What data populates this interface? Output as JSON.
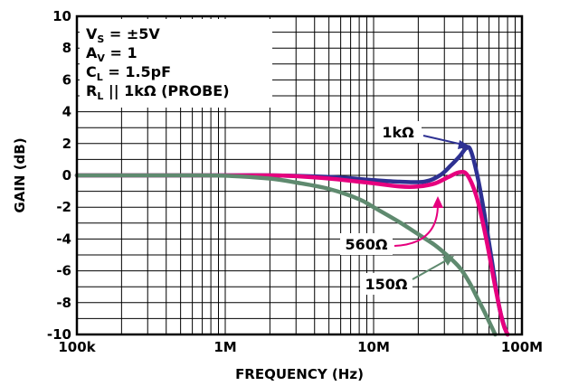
{
  "chart_data": {
    "type": "line",
    "xlabel": "FREQUENCY (Hz)",
    "ylabel": "GAIN (dB)",
    "x_scale": "log",
    "xlim": [
      100000,
      100000000
    ],
    "ylim": [
      -10,
      10
    ],
    "grid": true,
    "x_ticks": [
      {
        "value": 100000,
        "label": "100k"
      },
      {
        "value": 1000000,
        "label": "1M"
      },
      {
        "value": 10000000,
        "label": "10M"
      },
      {
        "value": 100000000,
        "label": "100M"
      }
    ],
    "y_ticks": [
      {
        "value": 10,
        "label": "10"
      },
      {
        "value": 8,
        "label": "8"
      },
      {
        "value": 6,
        "label": "6"
      },
      {
        "value": 4,
        "label": "4"
      },
      {
        "value": 2,
        "label": "2"
      },
      {
        "value": 0,
        "label": "0"
      },
      {
        "value": -2,
        "label": "-2"
      },
      {
        "value": -4,
        "label": "-4"
      },
      {
        "value": -6,
        "label": "-6"
      },
      {
        "value": -8,
        "label": "-8"
      },
      {
        "value": -10,
        "label": "-10"
      }
    ],
    "conditions": [
      {
        "main": "V",
        "sub": "S",
        "rest": " = ±5V"
      },
      {
        "main": "A",
        "sub": "V",
        "rest": " = 1"
      },
      {
        "main": "C",
        "sub": "L",
        "rest": " = 1.5pF"
      },
      {
        "main": "R",
        "sub": "L",
        "rest": " || 1kΩ (PROBE)"
      }
    ],
    "series": [
      {
        "name": "1kΩ",
        "color": "#2e3192",
        "x": [
          100000,
          1000000,
          2000000,
          5000000,
          10000000,
          15000000,
          22000000,
          28000000,
          33000000,
          38000000,
          42000000,
          45000000,
          50000000,
          56000000,
          63000000,
          70000000,
          76000000,
          80000000
        ],
        "y": [
          0,
          0,
          0,
          -0.1,
          -0.3,
          -0.4,
          -0.4,
          0,
          0.6,
          1.2,
          1.7,
          1.6,
          0,
          -2.5,
          -5.5,
          -8.2,
          -9.5,
          -10
        ]
      },
      {
        "name": "560Ω",
        "color": "#e6007e",
        "x": [
          100000,
          1000000,
          2000000,
          3000000,
          5000000,
          10000000,
          15000000,
          20000000,
          26000000,
          32000000,
          38000000,
          43000000,
          50000000,
          58000000,
          66000000,
          74000000,
          80000000
        ],
        "y": [
          0,
          0,
          0,
          -0.05,
          -0.2,
          -0.5,
          -0.7,
          -0.7,
          -0.5,
          -0.1,
          0.2,
          0,
          -1.5,
          -4.2,
          -7,
          -9.2,
          -10
        ]
      },
      {
        "name": "150Ω",
        "color": "#5f8a6f",
        "x": [
          100000,
          500000,
          1000000,
          2000000,
          3000000,
          5000000,
          8000000,
          10000000,
          15000000,
          20000000,
          26000000,
          32000000,
          38000000,
          44000000,
          50000000,
          56000000,
          63000000,
          66000000
        ],
        "y": [
          0,
          0,
          -0.02,
          -0.2,
          -0.45,
          -0.85,
          -1.5,
          -2,
          -2.95,
          -3.7,
          -4.4,
          -5.1,
          -5.8,
          -6.7,
          -7.7,
          -8.6,
          -9.6,
          -10
        ]
      }
    ],
    "annotations": [
      {
        "text": "1kΩ",
        "series": "1kΩ",
        "point_x": 43000000,
        "point_y": 1.8
      },
      {
        "text": "560Ω",
        "series": "560Ω",
        "point_x": 33000000,
        "point_y": -1.6
      },
      {
        "text": "150Ω",
        "series": "150Ω",
        "point_x": 28000000,
        "point_y": -5.2
      }
    ]
  }
}
